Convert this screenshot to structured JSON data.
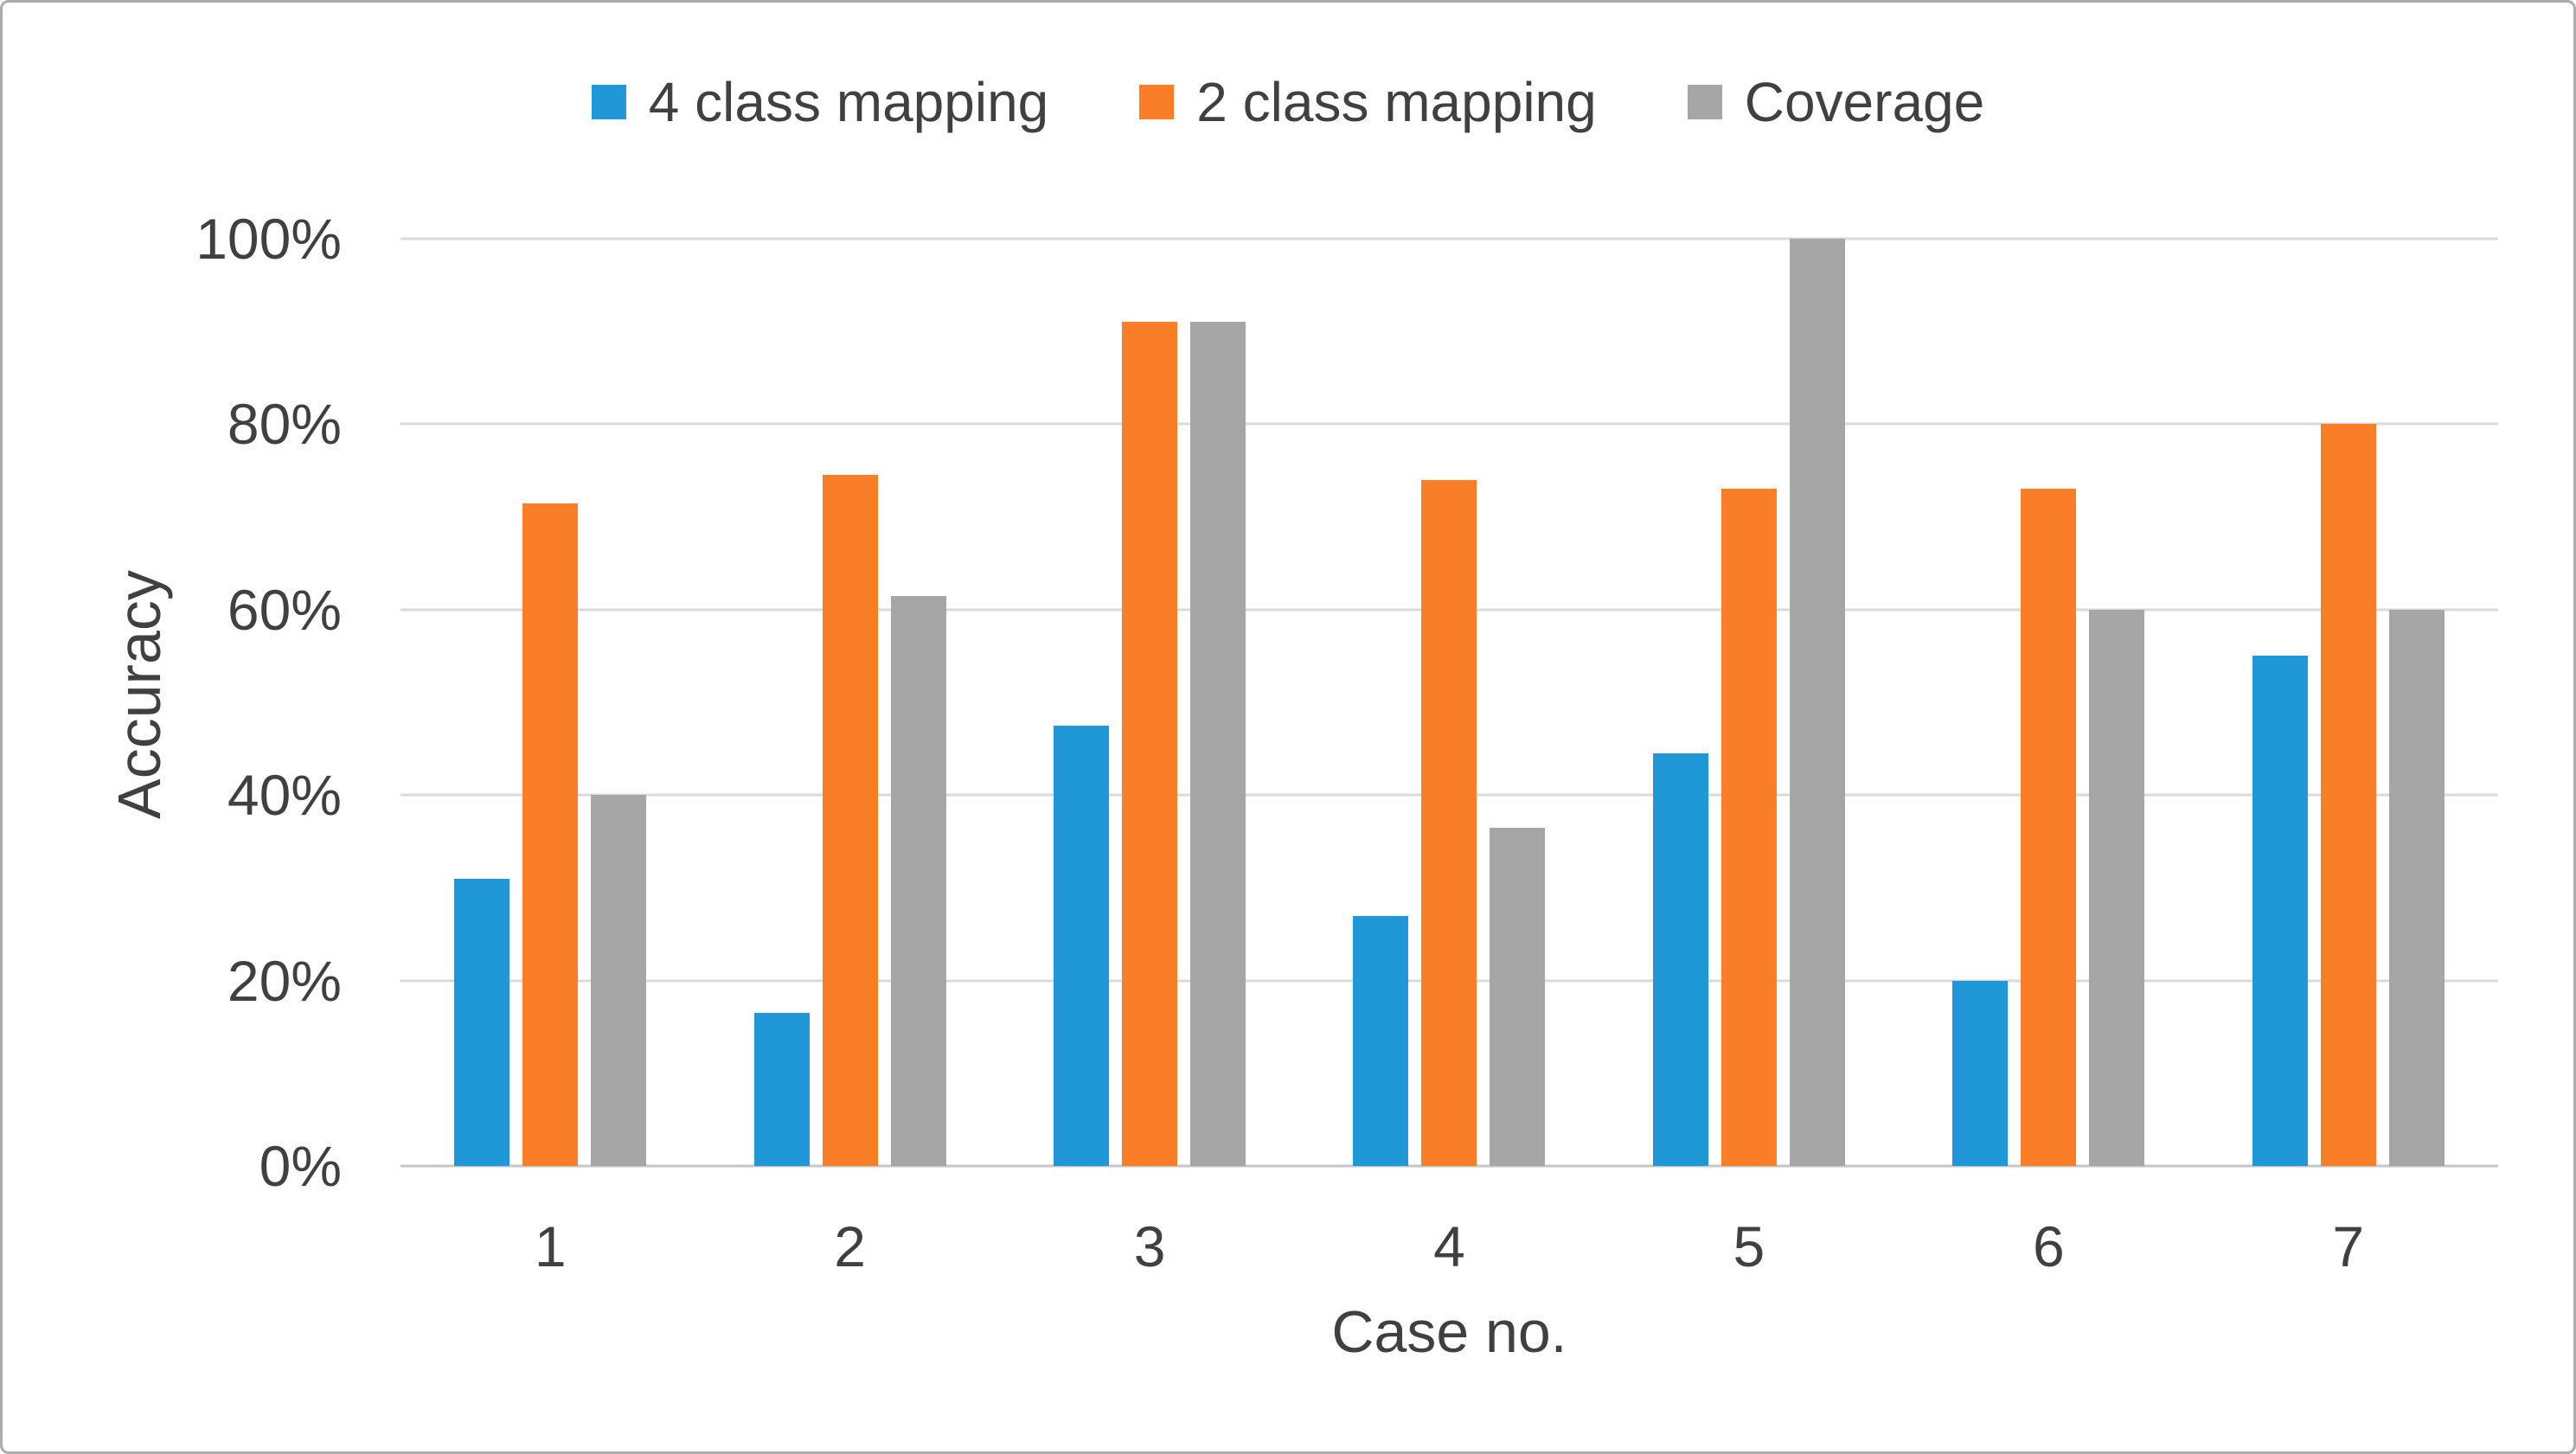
{
  "chart_data": {
    "type": "bar",
    "title": "",
    "xlabel": "Case no.",
    "ylabel": "Accuracy",
    "categories": [
      "1",
      "2",
      "3",
      "4",
      "5",
      "6",
      "7"
    ],
    "series": [
      {
        "name": "4 class mapping",
        "color": "#2097D6",
        "values": [
          31,
          16.5,
          47.5,
          27,
          44.5,
          20,
          55
        ]
      },
      {
        "name": "2 class mapping",
        "color": "#FA7D27",
        "values": [
          71.5,
          74.5,
          91,
          74,
          73,
          73,
          80
        ]
      },
      {
        "name": "Coverage",
        "color": "#A6A6A6",
        "values": [
          40,
          61.5,
          91,
          36.5,
          100,
          60,
          60
        ]
      }
    ],
    "ylim": [
      0,
      100
    ],
    "yticks": [
      {
        "label": "0%",
        "value": 0
      },
      {
        "label": "20%",
        "value": 20
      },
      {
        "label": "40%",
        "value": 40
      },
      {
        "label": "60%",
        "value": 60
      },
      {
        "label": "80%",
        "value": 80
      },
      {
        "label": "100%",
        "value": 100
      }
    ],
    "unit": "%",
    "grid": true,
    "legend_position": "top",
    "colors": {
      "gridline": "#DADADA",
      "axis_line": "#C6C6C6",
      "text": "#404040",
      "frame_border": "#ACACAC",
      "background": "#FFFFFF"
    }
  }
}
